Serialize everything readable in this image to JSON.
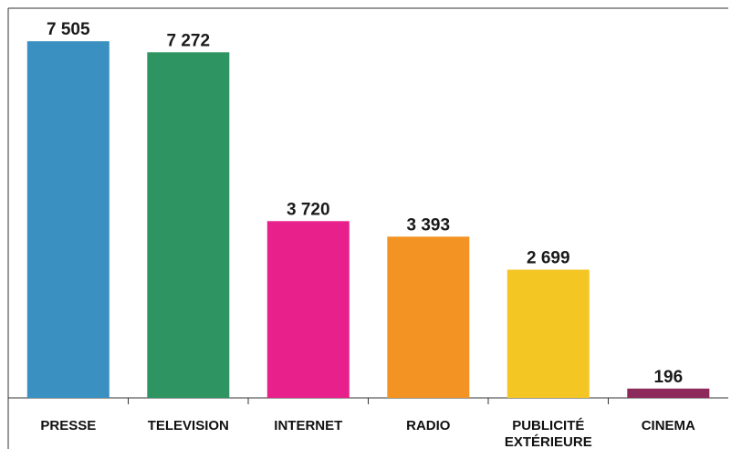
{
  "chart_data": {
    "type": "bar",
    "categories": [
      "PRESSE",
      "TELEVISION",
      "INTERNET",
      "RADIO",
      "PUBLICITÉ EXTÉRIEURE",
      "CINEMA"
    ],
    "category_lines": [
      [
        "PRESSE"
      ],
      [
        "TELEVISION"
      ],
      [
        "INTERNET"
      ],
      [
        "RADIO"
      ],
      [
        "PUBLICITÉ",
        "EXTÉRIEURE"
      ],
      [
        "CINEMA"
      ]
    ],
    "values": [
      7505,
      7272,
      3720,
      3393,
      2699,
      196
    ],
    "value_labels": [
      "7 505",
      "7 272",
      "3 720",
      "3 393",
      "2 699",
      "196"
    ],
    "colors": [
      "#3a91c1",
      "#2e9462",
      "#e8208b",
      "#f39323",
      "#f4c623",
      "#8c2a5c"
    ],
    "ylim": [
      0,
      8200
    ],
    "title": "",
    "xlabel": "",
    "ylabel": "",
    "grid": false,
    "legend": "none"
  }
}
